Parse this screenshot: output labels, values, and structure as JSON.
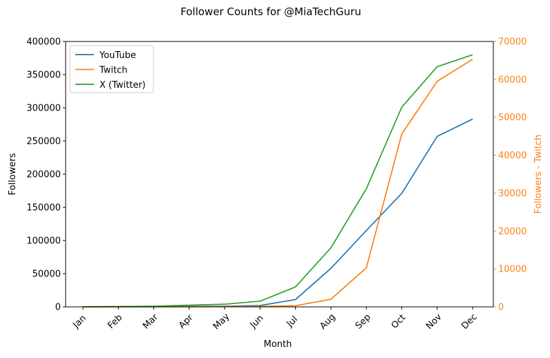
{
  "chart_data": {
    "type": "line",
    "title": "Follower Counts for @MiaTechGuru",
    "xlabel": "Month",
    "ylabel": "Followers",
    "y2label": "Followers - Twitch",
    "categories": [
      "Jan",
      "Feb",
      "Mar",
      "Apr",
      "May",
      "Jun",
      "Jul",
      "Aug",
      "Sep",
      "Oct",
      "Nov",
      "Dec"
    ],
    "ylim": [
      0,
      400000
    ],
    "y2lim": [
      0,
      70000
    ],
    "yticks": [
      "0",
      "50000",
      "100000",
      "150000",
      "200000",
      "250000",
      "300000",
      "350000",
      "400000"
    ],
    "y2ticks": [
      "0",
      "10000",
      "20000",
      "30000",
      "40000",
      "50000",
      "60000",
      "70000"
    ],
    "legend_position": "top-left",
    "grid": false,
    "series": [
      {
        "name": "YouTube",
        "axis": "left",
        "color": "#1f77b4",
        "values": [
          50,
          150,
          300,
          600,
          1000,
          2000,
          11000,
          58000,
          115000,
          171000,
          257000,
          283000
        ]
      },
      {
        "name": "Twitch",
        "axis": "right",
        "color": "#ff7f0e",
        "values": [
          0,
          0,
          10,
          30,
          60,
          120,
          300,
          2000,
          10300,
          45600,
          59500,
          65300
        ]
      },
      {
        "name": "X (Twitter)",
        "axis": "left",
        "color": "#2ca02c",
        "values": [
          200,
          500,
          1000,
          2500,
          4000,
          8500,
          30000,
          89000,
          178000,
          301000,
          362000,
          380000
        ]
      }
    ],
    "right_axis_color": "#ff7f0e"
  }
}
